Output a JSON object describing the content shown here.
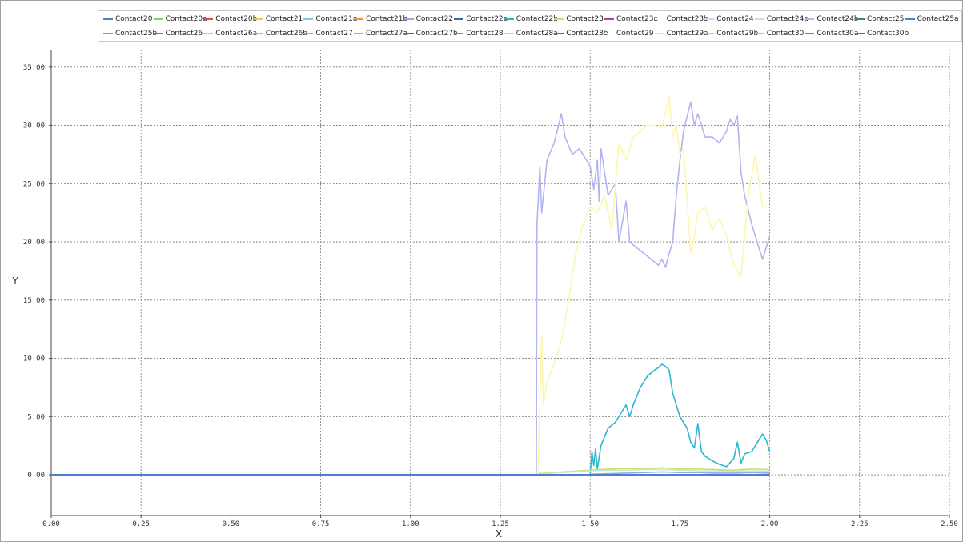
{
  "chart_data": {
    "type": "line",
    "xlabel": "X",
    "ylabel": "Y",
    "xlim": [
      0.0,
      2.5
    ],
    "ylim": [
      -3.5,
      36.5
    ],
    "xticks": [
      "0.00",
      "0.25",
      "0.50",
      "0.75",
      "1.00",
      "1.25",
      "1.50",
      "1.75",
      "2.00",
      "2.25",
      "2.50"
    ],
    "yticks": [
      "0.00",
      "5.00",
      "10.00",
      "15.00",
      "20.00",
      "25.00",
      "30.00",
      "35.00"
    ],
    "xtick_values": [
      0,
      0.25,
      0.5,
      0.75,
      1.0,
      1.25,
      1.5,
      1.75,
      2.0,
      2.25,
      2.5
    ],
    "ytick_values": [
      0,
      5,
      10,
      15,
      20,
      25,
      30,
      35
    ],
    "grid": true,
    "legend_position": "top",
    "legend": [
      {
        "name": "Contact20",
        "color": "#4a7fd4"
      },
      {
        "name": "Contact20a",
        "color": "#7bd36a"
      },
      {
        "name": "Contact20b",
        "color": "#e84a4a"
      },
      {
        "name": "Contact21",
        "color": "#f2c84b"
      },
      {
        "name": "Contact21a",
        "color": "#7ec8e8"
      },
      {
        "name": "Contact21b",
        "color": "#f0943a"
      },
      {
        "name": "Contact22",
        "color": "#9aa8e8"
      },
      {
        "name": "Contact22a",
        "color": "#2e6ea8"
      },
      {
        "name": "Contact22b",
        "color": "#2ab8b0"
      },
      {
        "name": "Contact23",
        "color": "#c8e070"
      },
      {
        "name": "Contact23a",
        "color": "#c03a9a"
      },
      {
        "name": "Contact23b",
        "color": "#ffffff"
      },
      {
        "name": "Contact24",
        "color": "#c8dcf0"
      },
      {
        "name": "Contact24a",
        "color": "#c8e8c8"
      },
      {
        "name": "Contact24b",
        "color": "#b4b4f0"
      },
      {
        "name": "Contact25",
        "color": "#2e8e6e"
      },
      {
        "name": "Contact25a",
        "color": "#4a7fd4"
      },
      {
        "name": "Contact25b",
        "color": "#5ac85a"
      },
      {
        "name": "Contact26",
        "color": "#e84a4a"
      },
      {
        "name": "Contact26a",
        "color": "#f2c84b"
      },
      {
        "name": "Contact26b",
        "color": "#7ec8e8"
      },
      {
        "name": "Contact27",
        "color": "#f0943a"
      },
      {
        "name": "Contact27a",
        "color": "#9aa8e8"
      },
      {
        "name": "Contact27b",
        "color": "#2e6ea8"
      },
      {
        "name": "Contact28",
        "color": "#2ab8d0"
      },
      {
        "name": "Contact28a",
        "color": "#c8e070"
      },
      {
        "name": "Contact28b",
        "color": "#c03a9a"
      },
      {
        "name": "Contact29",
        "color": "#ffffff"
      },
      {
        "name": "Contact29a",
        "color": "#c8e8e8"
      },
      {
        "name": "Contact29b",
        "color": "#c8c8c8"
      },
      {
        "name": "Contact30",
        "color": "#b4b4f0"
      },
      {
        "name": "Contact30a",
        "color": "#2eae6e"
      },
      {
        "name": "Contact30b",
        "color": "#4a6ad4"
      }
    ],
    "series": [
      {
        "name": "Contact30",
        "color": "#b4b4f0",
        "x": [
          0,
          1.35,
          1.352,
          1.36,
          1.365,
          1.38,
          1.4,
          1.42,
          1.43,
          1.45,
          1.47,
          1.49,
          1.5,
          1.51,
          1.52,
          1.525,
          1.53,
          1.55,
          1.57,
          1.58,
          1.6,
          1.61,
          1.63,
          1.65,
          1.67,
          1.69,
          1.7,
          1.71,
          1.72,
          1.73,
          1.74,
          1.75,
          1.76,
          1.78,
          1.79,
          1.8,
          1.82,
          1.84,
          1.86,
          1.88,
          1.89,
          1.9,
          1.91,
          1.92,
          1.93,
          1.95,
          1.97,
          1.98,
          1.99,
          2.0
        ],
        "y": [
          0,
          0,
          21.5,
          26.5,
          22.5,
          27.0,
          28.5,
          31.0,
          29.0,
          27.5,
          28.0,
          27.0,
          26.5,
          24.5,
          27.0,
          23.5,
          28.0,
          24.0,
          25.0,
          20.0,
          23.5,
          20.0,
          19.5,
          19.0,
          18.5,
          18.0,
          18.5,
          17.8,
          19.0,
          20.0,
          24.0,
          27.0,
          29.5,
          32.0,
          30.0,
          31.0,
          29.0,
          29.0,
          28.5,
          29.5,
          30.5,
          30.0,
          30.8,
          26.0,
          24.0,
          21.5,
          19.5,
          18.5,
          19.5,
          20.5
        ]
      },
      {
        "name": "Contact26a",
        "color": "#fbf7ae",
        "x": [
          1.355,
          1.365,
          1.37,
          1.38,
          1.4,
          1.42,
          1.44,
          1.46,
          1.48,
          1.5,
          1.52,
          1.54,
          1.56,
          1.58,
          1.6,
          1.62,
          1.64,
          1.66,
          1.68,
          1.7,
          1.72,
          1.73,
          1.74,
          1.75,
          1.76,
          1.78,
          1.79,
          1.8,
          1.82,
          1.84,
          1.86,
          1.88,
          1.9,
          1.92,
          1.94,
          1.96,
          1.98,
          2.0
        ],
        "y": [
          0.3,
          12.0,
          6.0,
          8.0,
          9.5,
          11.5,
          15.0,
          19.0,
          21.5,
          23.0,
          22.5,
          24.0,
          21.0,
          28.5,
          27.0,
          29.0,
          29.5,
          30.0,
          30.0,
          29.8,
          32.5,
          29.0,
          30.0,
          27.5,
          28.0,
          19.0,
          20.5,
          22.5,
          23.0,
          21.0,
          22.0,
          20.5,
          18.0,
          17.0,
          24.0,
          27.5,
          23.0,
          23.0
        ]
      },
      {
        "name": "Contact28",
        "color": "#2ab8d0",
        "x": [
          1.5,
          1.505,
          1.51,
          1.515,
          1.52,
          1.53,
          1.55,
          1.57,
          1.59,
          1.6,
          1.61,
          1.62,
          1.64,
          1.66,
          1.68,
          1.69,
          1.7,
          1.71,
          1.72,
          1.73,
          1.75,
          1.77,
          1.78,
          1.79,
          1.8,
          1.81,
          1.82,
          1.84,
          1.86,
          1.88,
          1.9,
          1.91,
          1.92,
          1.93,
          1.95,
          1.97,
          1.98,
          1.99,
          2.0
        ],
        "y": [
          0,
          2.0,
          0.8,
          2.2,
          0.5,
          2.5,
          4.0,
          4.5,
          5.5,
          6.0,
          5.0,
          6.0,
          7.5,
          8.5,
          9.0,
          9.2,
          9.5,
          9.3,
          9.0,
          7.0,
          5.0,
          4.0,
          2.8,
          2.3,
          4.4,
          2.0,
          1.6,
          1.2,
          0.9,
          0.7,
          1.4,
          2.8,
          1.0,
          1.8,
          2.0,
          3.0,
          3.5,
          3.0,
          2.0
        ]
      },
      {
        "name": "Contact23",
        "color": "#c8e070",
        "x": [
          1.355,
          1.4,
          1.45,
          1.5,
          1.55,
          1.6,
          1.65,
          1.7,
          1.75,
          1.8,
          1.85,
          1.9,
          1.95,
          2.0
        ],
        "y": [
          0.1,
          0.2,
          0.3,
          0.4,
          0.5,
          0.55,
          0.5,
          0.6,
          0.5,
          0.5,
          0.45,
          0.4,
          0.5,
          0.45
        ]
      },
      {
        "name": "Contact24a",
        "color": "#c8e8c8",
        "x": [
          1.355,
          1.4,
          1.45,
          1.5,
          1.55,
          1.6,
          1.65,
          1.7,
          1.75,
          1.8,
          1.85,
          1.9,
          1.95,
          2.0
        ],
        "y": [
          0.05,
          0.15,
          0.25,
          0.35,
          0.4,
          0.4,
          0.45,
          0.45,
          0.4,
          0.35,
          0.35,
          0.3,
          0.35,
          0.3
        ]
      },
      {
        "name": "Contact22",
        "color": "#9aa8e8",
        "x": [
          1.5,
          1.55,
          1.6,
          1.65,
          1.7,
          1.75,
          1.8,
          1.85,
          1.9,
          1.95,
          2.0
        ],
        "y": [
          0.05,
          0.1,
          0.15,
          0.2,
          0.25,
          0.2,
          0.2,
          0.15,
          0.15,
          0.2,
          0.15
        ]
      },
      {
        "name": "Contact20",
        "color": "#4a7fd4",
        "x": [
          0,
          2.0
        ],
        "y": [
          0,
          0
        ]
      }
    ]
  }
}
